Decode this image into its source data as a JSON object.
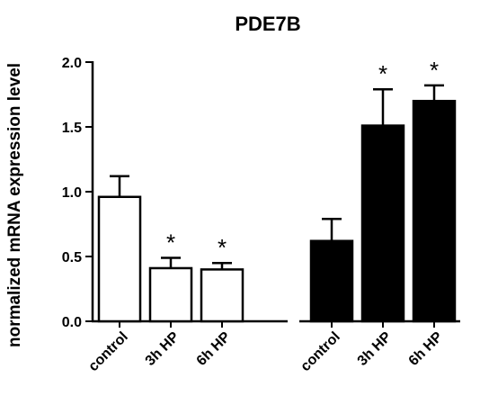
{
  "chart_data": {
    "type": "bar",
    "title": "PDE7B",
    "ylabel": "normalized mRNA expression level",
    "xlabel": "",
    "ylim": [
      0,
      2.0
    ],
    "yticks": [
      "0.0",
      "0.5",
      "1.0",
      "1.5",
      "2.0"
    ],
    "yticks_values": [
      0,
      0.5,
      1.0,
      1.5,
      2.0
    ],
    "grid": false,
    "error_bars": "upper only",
    "groups": [
      {
        "fill": "#ffffff",
        "categories": [
          "control",
          "3h HP",
          "6h HP"
        ],
        "values": [
          0.96,
          0.41,
          0.4
        ],
        "errors": [
          0.16,
          0.08,
          0.05
        ],
        "annotations": [
          "",
          "*",
          "*"
        ]
      },
      {
        "fill": "#000000",
        "categories": [
          "control",
          "3h HP",
          "6h HP"
        ],
        "values": [
          0.62,
          1.51,
          1.7
        ],
        "errors": [
          0.17,
          0.28,
          0.12
        ],
        "annotations": [
          "",
          "*",
          "*"
        ]
      }
    ]
  }
}
